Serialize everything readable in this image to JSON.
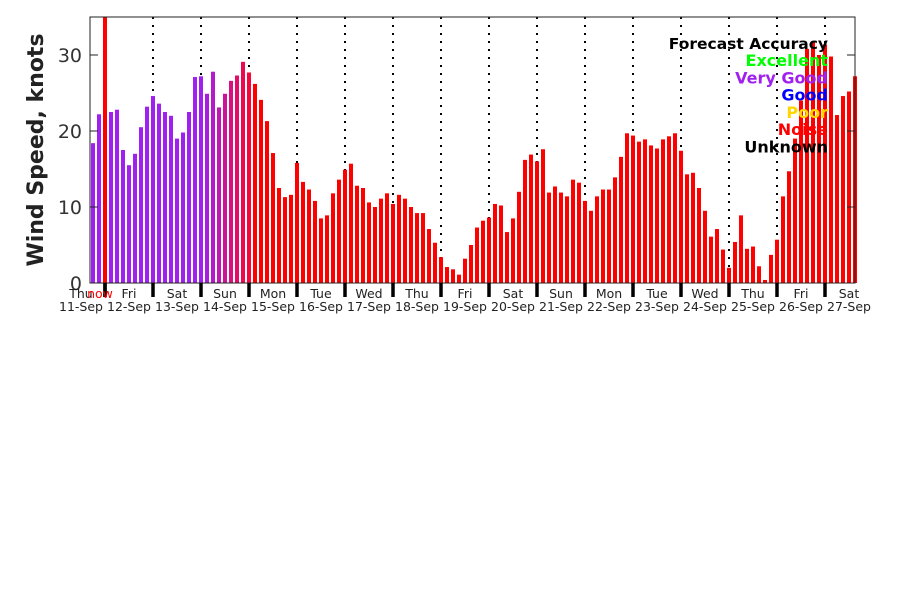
{
  "chart_data": {
    "type": "bar",
    "ylabel": "Wind Speed, knots",
    "ylim": [
      0,
      35
    ],
    "yticks": [
      0,
      10,
      20,
      30
    ],
    "interval_hours": 3,
    "now_label": "now",
    "now_color": "#ff0000",
    "days": [
      {
        "name": "Thu",
        "date": "11-Sep"
      },
      {
        "name": "Fri",
        "date": "12-Sep"
      },
      {
        "name": "Sat",
        "date": "13-Sep"
      },
      {
        "name": "Sun",
        "date": "14-Sep"
      },
      {
        "name": "Mon",
        "date": "15-Sep"
      },
      {
        "name": "Tue",
        "date": "16-Sep"
      },
      {
        "name": "Wed",
        "date": "17-Sep"
      },
      {
        "name": "Thu",
        "date": "18-Sep"
      },
      {
        "name": "Fri",
        "date": "19-Sep"
      },
      {
        "name": "Sat",
        "date": "20-Sep"
      },
      {
        "name": "Sun",
        "date": "21-Sep"
      },
      {
        "name": "Mon",
        "date": "22-Sep"
      },
      {
        "name": "Tue",
        "date": "23-Sep"
      },
      {
        "name": "Wed",
        "date": "24-Sep"
      },
      {
        "name": "Thu",
        "date": "25-Sep"
      },
      {
        "name": "Fri",
        "date": "26-Sep"
      },
      {
        "name": "Sat",
        "date": "27-Sep"
      }
    ],
    "values": [
      18.4,
      22.2,
      22.5,
      22.8,
      17.5,
      15.5,
      17.0,
      20.5,
      23.2,
      24.6,
      23.6,
      22.5,
      22.0,
      19.0,
      19.8,
      22.5,
      27.1,
      27.2,
      24.9,
      27.8,
      23.1,
      24.9,
      26.6,
      27.3,
      29.1,
      27.7,
      26.2,
      24.1,
      21.3,
      17.1,
      12.5,
      11.3,
      11.6,
      15.8,
      13.3,
      12.3,
      10.8,
      8.5,
      8.9,
      11.8,
      13.6,
      14.9,
      15.7,
      12.8,
      12.5,
      10.6,
      10.0,
      11.1,
      11.8,
      10.4,
      11.6,
      11.1,
      10.0,
      9.2,
      9.2,
      7.1,
      5.3,
      3.4,
      2.1,
      1.8,
      1.1,
      3.2,
      5.0,
      7.3,
      8.2,
      8.6,
      10.4,
      10.2,
      6.7,
      8.5,
      12.0,
      16.2,
      16.9,
      16.0,
      17.6,
      11.9,
      12.7,
      11.9,
      11.4,
      13.6,
      13.2,
      10.8,
      9.5,
      11.4,
      12.3,
      12.3,
      13.9,
      16.6,
      19.7,
      19.4,
      18.6,
      18.9,
      18.1,
      17.7,
      18.9,
      19.3,
      19.7,
      17.4,
      14.3,
      14.5,
      12.5,
      9.5,
      6.1,
      7.1,
      4.4,
      2.0,
      5.4,
      8.9,
      4.5,
      4.8,
      2.2,
      0.4,
      3.7,
      5.7,
      11.4,
      14.7,
      19.0,
      24.0,
      30.8,
      31.8,
      30.0,
      31.4,
      29.8,
      22.1,
      24.6,
      25.2,
      27.2
    ],
    "bar_colors": [
      {
        "color": "#a020f0",
        "count": 18
      },
      {
        "color": "#a81ee0",
        "count": 1
      },
      {
        "color": "#b51ac8",
        "count": 1
      },
      {
        "color": "#c017b0",
        "count": 1
      },
      {
        "color": "#cc1498",
        "count": 1
      },
      {
        "color": "#d81080",
        "count": 1
      },
      {
        "color": "#e30c68",
        "count": 1
      },
      {
        "color": "#ee0850",
        "count": 1
      },
      {
        "color": "#f80438",
        "count": 1
      },
      {
        "color": "#ff0000",
        "count": 101
      }
    ],
    "legend": {
      "title": "Forecast Accuracy",
      "items": [
        {
          "label": "Excellent",
          "color": "#00ff00"
        },
        {
          "label": "Very Good",
          "color": "#a020f0"
        },
        {
          "label": "Good",
          "color": "#0000ff"
        },
        {
          "label": "Poor",
          "color": "#ffd700"
        },
        {
          "label": "Noise",
          "color": "#ff0000"
        },
        {
          "label": "Unknown",
          "color": "#000000"
        }
      ]
    }
  }
}
